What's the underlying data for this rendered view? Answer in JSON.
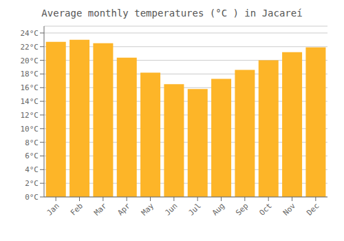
{
  "chart_data": {
    "type": "bar",
    "title": "Average monthly temperatures (°C ) in Jacareí",
    "categories": [
      "Jan",
      "Feb",
      "Mar",
      "Apr",
      "May",
      "Jun",
      "Jul",
      "Aug",
      "Sep",
      "Oct",
      "Nov",
      "Dec"
    ],
    "values": [
      22.7,
      23.0,
      22.5,
      20.4,
      18.2,
      16.5,
      15.8,
      17.3,
      18.6,
      20.0,
      21.2,
      21.9
    ],
    "color": "#FDB528",
    "ylim": [
      0,
      25
    ],
    "yticks": [
      {
        "value": 0,
        "label": "0°C"
      },
      {
        "value": 2,
        "label": "2°C"
      },
      {
        "value": 4,
        "label": "4°C"
      },
      {
        "value": 6,
        "label": "6°C"
      },
      {
        "value": 8,
        "label": "8°C"
      },
      {
        "value": 10,
        "label": "10°C"
      },
      {
        "value": 12,
        "label": "12°C"
      },
      {
        "value": 14,
        "label": "14°C"
      },
      {
        "value": 16,
        "label": "16°C"
      },
      {
        "value": 18,
        "label": "18°C"
      },
      {
        "value": 20,
        "label": "20°C"
      },
      {
        "value": 22,
        "label": "22°C"
      },
      {
        "value": 24,
        "label": "24°C"
      }
    ],
    "grid": true
  }
}
